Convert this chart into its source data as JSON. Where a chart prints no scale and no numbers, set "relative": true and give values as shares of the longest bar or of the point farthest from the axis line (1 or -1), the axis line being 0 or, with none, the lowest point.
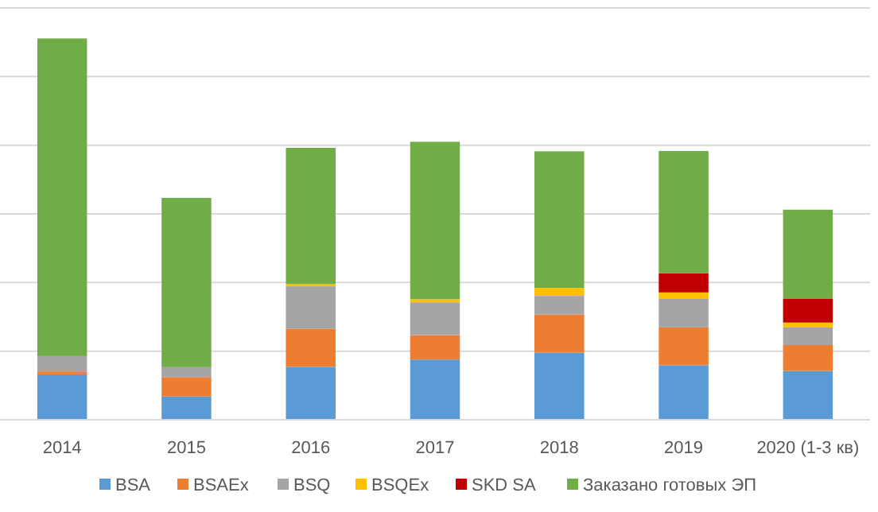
{
  "chart_data": {
    "type": "bar",
    "stacked": true,
    "relative": true,
    "grid": true,
    "legend": "bottom",
    "categories": [
      "2014",
      "2015",
      "2016",
      "2017",
      "2018",
      "2019",
      "2020 (1-3 кв)"
    ],
    "series": [
      {
        "name": "BSA",
        "color": "#5b9bd5",
        "values": [
          0.119,
          0.061,
          0.139,
          0.158,
          0.176,
          0.143,
          0.128
        ]
      },
      {
        "name": "BSAEx",
        "color": "#ed7d31",
        "values": [
          0.006,
          0.051,
          0.1,
          0.064,
          0.1,
          0.099,
          0.068
        ]
      },
      {
        "name": "BSQ",
        "color": "#a5a5a5",
        "values": [
          0.042,
          0.026,
          0.111,
          0.086,
          0.049,
          0.075,
          0.046
        ]
      },
      {
        "name": "BSQEx",
        "color": "#ffc000",
        "values": [
          0,
          0,
          0.006,
          0.008,
          0.021,
          0.017,
          0.013
        ]
      },
      {
        "name": "SKD SA",
        "color": "#c00000",
        "values": [
          0,
          0,
          0,
          0,
          0,
          0.05,
          0.063
        ]
      },
      {
        "name": "Заказано готовых ЭП",
        "color": "#70ad47",
        "values": [
          0.833,
          0.444,
          0.357,
          0.413,
          0.358,
          0.321,
          0.233
        ]
      }
    ]
  }
}
